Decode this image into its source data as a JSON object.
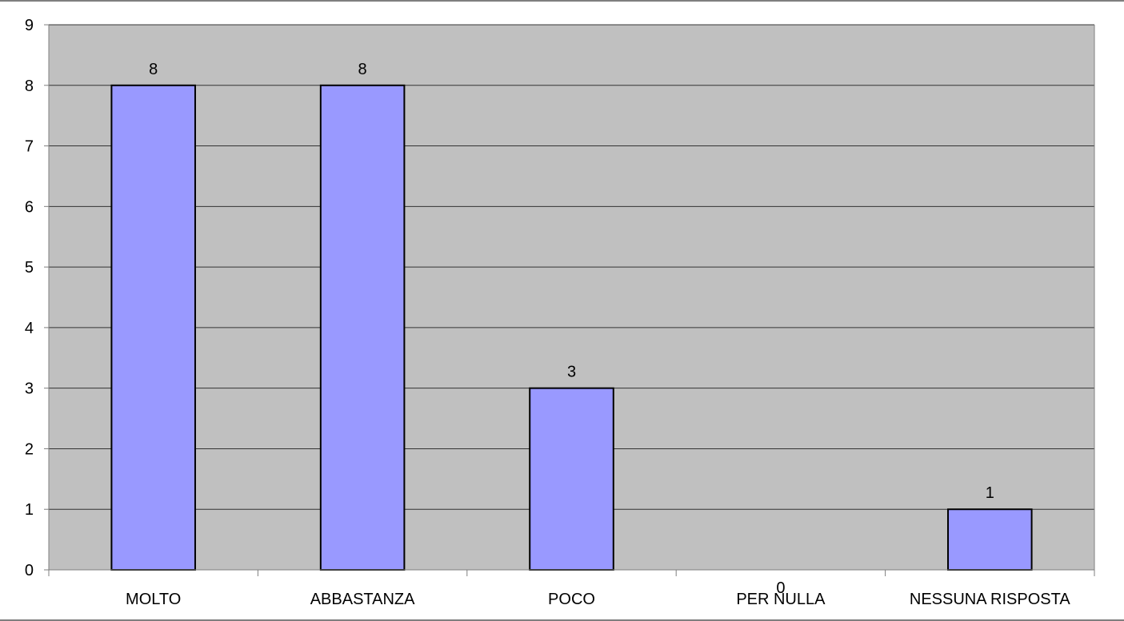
{
  "chart_data": {
    "type": "bar",
    "categories": [
      "MOLTO",
      "ABBASTANZA",
      "POCO",
      "PER NULLA",
      "NESSUNA RISPOSTA"
    ],
    "values": [
      8,
      8,
      3,
      0,
      1
    ],
    "title": "",
    "xlabel": "",
    "ylabel": "",
    "ylim": [
      0,
      9
    ],
    "yticks": [
      "0",
      "1",
      "2",
      "3",
      "4",
      "5",
      "6",
      "7",
      "8",
      "9"
    ],
    "data_labels": [
      "8",
      "8",
      "3",
      "0",
      "1"
    ],
    "grid": true,
    "legend": "none",
    "colors": {
      "bar_fill": "#9999ff",
      "bar_stroke": "#000000",
      "plot_background": "#c0c0c0",
      "gridline": "#333333"
    }
  }
}
